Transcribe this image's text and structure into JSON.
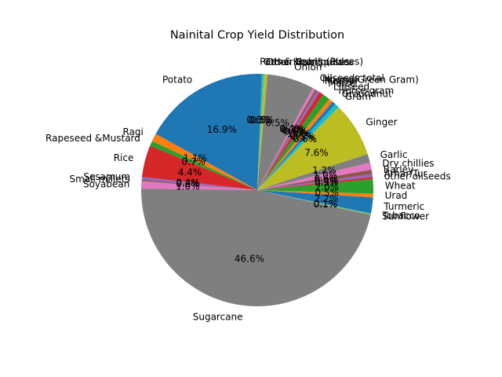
{
  "chart_data": {
    "type": "pie",
    "title": "Nainital Crop Yield Distribution",
    "start_angle_deg": 90,
    "direction": "counterclockwise",
    "colors": [
      "#1f77b4",
      "#ff7f0e",
      "#2ca02c",
      "#d62728",
      "#9467bd",
      "#8c564b",
      "#e377c2",
      "#7f7f7f",
      "#bcbd22",
      "#17becf"
    ],
    "slices": [
      {
        "label": "Potato",
        "value": 16.9,
        "pct_label": "16.9%"
      },
      {
        "label": "Ragi",
        "value": 1.1,
        "pct_label": "1.1%"
      },
      {
        "label": "Rapeseed &Mustard",
        "value": 0.7,
        "pct_label": "0.7%"
      },
      {
        "label": "Rice",
        "value": 4.4,
        "pct_label": "4.4%"
      },
      {
        "label": "Sesamum",
        "value": 0.4,
        "pct_label": "0.4%"
      },
      {
        "label": "Small millets",
        "value": 0.2,
        "pct_label": "0.2%"
      },
      {
        "label": "Soyabean",
        "value": 1.0,
        "pct_label": "1.0%"
      },
      {
        "label": "Sugarcane",
        "value": 46.6,
        "pct_label": "46.6%"
      },
      {
        "label": "Sunflower",
        "value": 0.1,
        "pct_label": "0.1%"
      },
      {
        "label": "Tobacco",
        "value": 0.1,
        "pct_label": "0.1%"
      },
      {
        "label": "Turmeric",
        "value": 2.2,
        "pct_label": "2.2%"
      },
      {
        "label": "Urad",
        "value": 0.5,
        "pct_label": "0.5%"
      },
      {
        "label": "Wheat",
        "value": 2.0,
        "pct_label": "2.0%"
      },
      {
        "label": "other oilseeds",
        "value": 0.3,
        "pct_label": "0.3%"
      },
      {
        "label": "Arhar/Tur",
        "value": 0.4,
        "pct_label": "0.4%"
      },
      {
        "label": "Barley",
        "value": 0.6,
        "pct_label": "0.6%"
      },
      {
        "label": "Dry chillies",
        "value": 1.0,
        "pct_label": "1.0%"
      },
      {
        "label": "Garlic",
        "value": 1.2,
        "pct_label": "1.2%"
      },
      {
        "label": "Ginger",
        "value": 7.6,
        "pct_label": "7.6%"
      },
      {
        "label": "Gram",
        "value": 0.6,
        "pct_label": "0.6%"
      },
      {
        "label": "Groundnut",
        "value": 0.5,
        "pct_label": "0.5%"
      },
      {
        "label": "Horse-gram",
        "value": 0.6,
        "pct_label": "0.6%"
      },
      {
        "label": "Linseed",
        "value": 1.0,
        "pct_label": "1.0%"
      },
      {
        "label": "Maize",
        "value": 0.6,
        "pct_label": "0.6%"
      },
      {
        "label": "Masoor",
        "value": 0.4,
        "pct_label": "0.4%"
      },
      {
        "label": "Moong(Green Gram)",
        "value": 0.3,
        "pct_label": "0.3%"
      },
      {
        "label": "Oilseeds total",
        "value": 0.4,
        "pct_label": "0.4%"
      },
      {
        "label": "Onion",
        "value": 6.5,
        "pct_label": "6.5%"
      },
      {
        "label": "Other  Rabi pulses",
        "value": 0.5,
        "pct_label": "0.5%"
      },
      {
        "label": "Other Kharif pulses",
        "value": 0.3,
        "pct_label": "0.3%"
      },
      {
        "label": "Peas & beans (Pulses)",
        "value": 0.6,
        "pct_label": "0.6%"
      }
    ]
  }
}
